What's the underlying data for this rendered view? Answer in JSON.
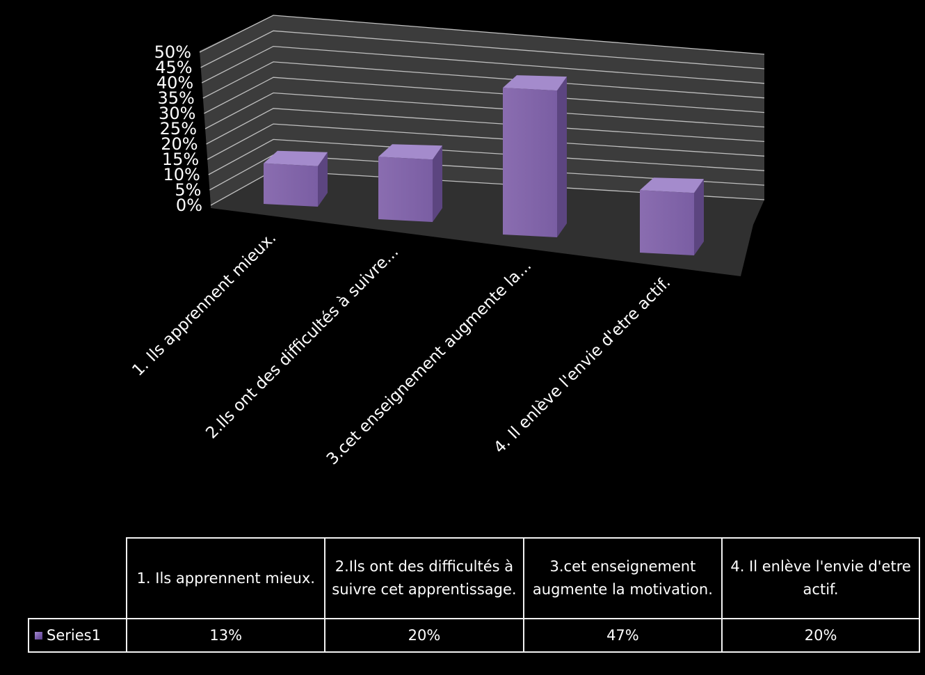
{
  "chart_data": {
    "type": "bar",
    "style": "3d-column",
    "categories": [
      "1. Ils apprennent mieux.",
      "2.Ils ont des difficultés à suivre cet apprentissage.",
      "3.cet enseignement augmente la motivation.",
      "4. Il enlève l'envie d'etre actif."
    ],
    "axis_category_labels": [
      "1. Ils apprennent mieux.",
      "2.Ils ont des difficultés à suivre...",
      "3.cet enseignement augmente la...",
      "4. Il enlève l'envie d'etre actif."
    ],
    "series": [
      {
        "name": "Series1",
        "values": [
          13,
          20,
          47,
          20
        ],
        "value_labels": [
          "13%",
          "20%",
          "47%",
          "20%"
        ]
      }
    ],
    "ylim": [
      0,
      50
    ],
    "yticks": [
      "0%",
      "5%",
      "10%",
      "15%",
      "20%",
      "25%",
      "30%",
      "35%",
      "40%",
      "45%",
      "50%"
    ],
    "grid": true,
    "legend": "data-table",
    "title": "",
    "xlabel": "",
    "ylabel": ""
  },
  "colors": {
    "background": "#000000",
    "bar_front": "#8064a2",
    "bar_top": "#a48bcc",
    "bar_side": "#5c4580",
    "wall": "#3c3c3c",
    "floor": "#303030",
    "gridline": "#bfbfbf",
    "text": "#ffffff"
  }
}
